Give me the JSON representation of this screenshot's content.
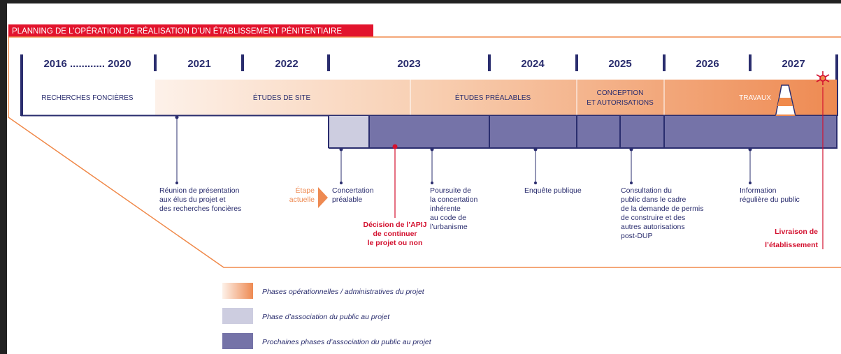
{
  "title": "PLANNING DE L’OPÉRATION DE RÉALISATION D’UN ÉTABLISSEMENT PÉNITENTIAIRE",
  "years": [
    "2016 ............ 2020",
    "2021",
    "2022",
    "2023",
    "2024",
    "2025",
    "2026",
    "2027"
  ],
  "phases": [
    {
      "lines": [
        "RECHERCHES FONCIÈRES"
      ]
    },
    {
      "lines": [
        "ÉTUDES DE SITE"
      ]
    },
    {
      "lines": [
        "ÉTUDES PRÉALABLES"
      ]
    },
    {
      "lines": [
        "CONCEPTION",
        "ET AUTORISATIONS"
      ]
    },
    {
      "lines": [
        "TRAVAUX"
      ]
    }
  ],
  "current_step": [
    "Étape",
    "actuelle"
  ],
  "milestones": [
    {
      "lines": [
        "Réunion de présentation",
        "aux élus du projet et",
        "des recherches foncières"
      ]
    },
    {
      "lines": [
        "Concertation",
        "préalable"
      ]
    },
    {
      "lines": [
        "Décision de l’APIJ",
        "de continuer",
        "le projet ou non"
      ]
    },
    {
      "lines": [
        "Poursuite de",
        "la concertation",
        "inhérente",
        "au code de",
        "l’urbanisme"
      ]
    },
    {
      "lines": [
        "Enquête publique"
      ]
    },
    {
      "lines": [
        "Consultation du",
        "public dans le cadre",
        "de la demande de permis",
        "de construire et des",
        "autres autorisations",
        "post-DUP"
      ]
    },
    {
      "lines": [
        "Information",
        "régulière du public"
      ]
    },
    {
      "lines": [
        "Livraison de",
        "l’établissement"
      ]
    }
  ],
  "legend": [
    "Phases opérationnelles / administratives du projet",
    "Phase d’association du public au projet",
    "Prochaines phases d’association du public au projet"
  ]
}
